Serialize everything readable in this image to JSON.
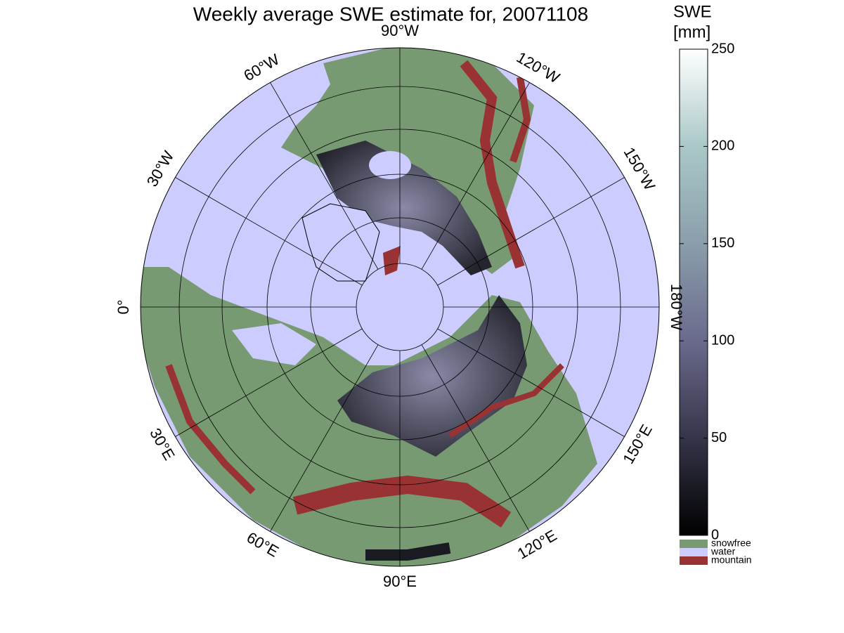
{
  "title": "Weekly average SWE estimate for, 20071108",
  "longitude_labels": [
    "0°",
    "30°W",
    "60°W",
    "90°W",
    "120°W",
    "150°W",
    "180°W",
    "150°E",
    "120°E",
    "90°E",
    "60°E",
    "30°E"
  ],
  "colorbar": {
    "label_lines": [
      "SWE",
      "[mm]"
    ],
    "lim": [
      0,
      250
    ],
    "ticks": [
      0,
      50,
      100,
      150,
      200,
      250
    ]
  },
  "legend": [
    {
      "name": "snowfree",
      "color": "#789a72"
    },
    {
      "name": "water",
      "color": "#ccccff"
    },
    {
      "name": "mountain",
      "color": "#993333"
    }
  ]
}
